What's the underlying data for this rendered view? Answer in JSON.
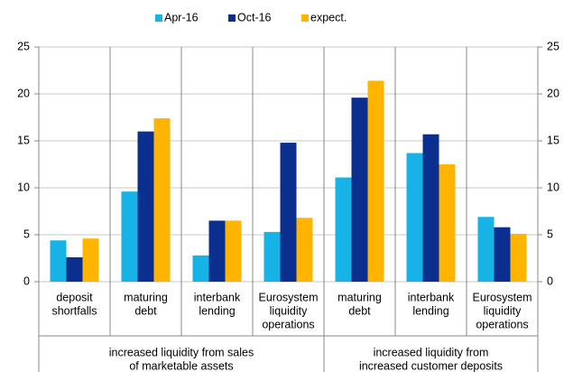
{
  "chart_data": {
    "type": "bar",
    "categories": [
      [
        "deposit",
        "shortfalls"
      ],
      [
        "maturing",
        "debt"
      ],
      [
        "interbank",
        "lending"
      ],
      [
        "Eurosystem",
        "liquidity",
        "operations"
      ],
      [
        "maturing",
        "debt"
      ],
      [
        "interbank",
        "lending"
      ],
      [
        "Eurosystem",
        "liquidity",
        "operations"
      ]
    ],
    "groups": [
      {
        "label": [
          "increased liquidity from sales",
          "of marketable assets"
        ],
        "count": 4
      },
      {
        "label": [
          "increased liquidity from",
          "increased customer deposits"
        ],
        "count": 3
      }
    ],
    "series": [
      {
        "name": "Apr-16",
        "color": "#17b2e6",
        "values": [
          4.4,
          9.6,
          2.8,
          5.3,
          11.1,
          13.7,
          6.9
        ]
      },
      {
        "name": "Oct-16",
        "color": "#0b2f8f",
        "values": [
          2.6,
          16.0,
          6.5,
          14.8,
          19.6,
          15.7,
          5.8
        ]
      },
      {
        "name": "expect.",
        "color": "#ffb400",
        "values": [
          4.6,
          17.4,
          6.5,
          6.8,
          21.4,
          12.5,
          5.1
        ]
      }
    ],
    "ylim": [
      0,
      25
    ],
    "yticks": [
      0,
      5,
      10,
      15,
      20,
      25
    ],
    "grid": true,
    "legend": "top"
  }
}
